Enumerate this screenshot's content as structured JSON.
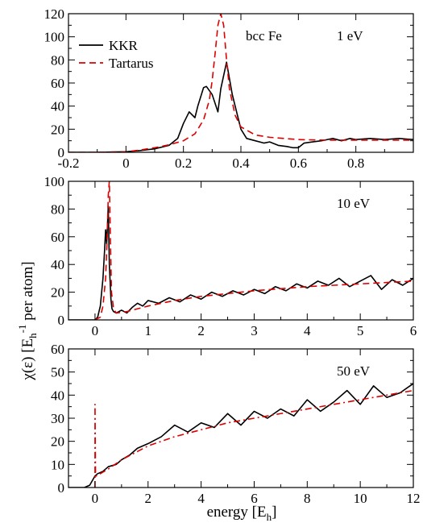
{
  "chart_data": [
    {
      "type": "line",
      "xlim": [
        -0.2,
        1.0
      ],
      "ylim": [
        0,
        120
      ],
      "xticks": [
        -0.2,
        0,
        0.2,
        0.4,
        0.6,
        0.8
      ],
      "xtick_labels": [
        "-0.2",
        "0",
        "0.2",
        "0.4",
        "0.6",
        "0.8"
      ],
      "yticks": [
        0,
        20,
        40,
        60,
        80,
        100,
        120
      ],
      "ytick_labels": [
        "0",
        "20",
        "40",
        "60",
        "80",
        "100",
        "120"
      ],
      "annotations": [
        "bcc Fe",
        "1 eV"
      ],
      "legend": {
        "placement": "top-left",
        "entries": [
          "KKR",
          "Tartarus"
        ]
      },
      "series": [
        {
          "name": "KKR",
          "color": "#000000",
          "dash": "solid",
          "x": [
            -0.2,
            -0.1,
            0.0,
            0.05,
            0.1,
            0.15,
            0.18,
            0.2,
            0.22,
            0.24,
            0.25,
            0.27,
            0.28,
            0.3,
            0.32,
            0.33,
            0.35,
            0.37,
            0.4,
            0.42,
            0.45,
            0.48,
            0.5,
            0.53,
            0.56,
            0.58,
            0.6,
            0.62,
            0.65,
            0.68,
            0.7,
            0.72,
            0.75,
            0.78,
            0.8,
            0.85,
            0.9,
            0.95,
            1.0
          ],
          "y": [
            0,
            0,
            0.5,
            1.5,
            3,
            6,
            12,
            25,
            35,
            30,
            40,
            56,
            57,
            50,
            35,
            55,
            78,
            50,
            20,
            12,
            10,
            8,
            9,
            6,
            5,
            4,
            4,
            8,
            9,
            10,
            11,
            12,
            10,
            12,
            11,
            12,
            11,
            12,
            11
          ]
        },
        {
          "name": "Tartarus",
          "color": "#dd0000",
          "dash": "dashed",
          "x": [
            -0.2,
            -0.1,
            0.0,
            0.05,
            0.1,
            0.15,
            0.2,
            0.24,
            0.27,
            0.29,
            0.3,
            0.31,
            0.32,
            0.33,
            0.34,
            0.35,
            0.36,
            0.38,
            0.4,
            0.45,
            0.5,
            0.55,
            0.6,
            0.7,
            0.8,
            0.9,
            1.0
          ],
          "y": [
            0,
            0,
            0.5,
            2,
            4,
            6.5,
            10,
            16,
            28,
            45,
            62,
            85,
            110,
            120,
            110,
            80,
            55,
            32,
            22,
            15,
            13,
            12,
            11,
            10.5,
            10.5,
            10.5,
            10.5
          ]
        }
      ]
    },
    {
      "type": "line",
      "xlim": [
        -0.5,
        6
      ],
      "ylim": [
        0,
        100
      ],
      "xticks": [
        0,
        1,
        2,
        3,
        4,
        5,
        6
      ],
      "xtick_labels": [
        "0",
        "1",
        "2",
        "3",
        "4",
        "5",
        "6"
      ],
      "yticks": [
        0,
        20,
        40,
        60,
        80,
        100
      ],
      "ytick_labels": [
        "0",
        "20",
        "40",
        "60",
        "80",
        "100"
      ],
      "annotations": [
        "10 eV"
      ],
      "series": [
        {
          "name": "KKR",
          "color": "#000000",
          "dash": "solid",
          "x": [
            -0.5,
            0.0,
            0.05,
            0.1,
            0.15,
            0.18,
            0.2,
            0.22,
            0.25,
            0.27,
            0.3,
            0.32,
            0.35,
            0.4,
            0.5,
            0.6,
            0.7,
            0.8,
            0.9,
            1.0,
            1.2,
            1.4,
            1.6,
            1.8,
            2.0,
            2.2,
            2.4,
            2.6,
            2.8,
            3.0,
            3.2,
            3.4,
            3.6,
            3.8,
            4.0,
            4.2,
            4.4,
            4.6,
            4.8,
            5.0,
            5.2,
            5.4,
            5.6,
            5.8,
            6.0
          ],
          "y": [
            0,
            0,
            2,
            10,
            30,
            50,
            65,
            55,
            82,
            40,
            15,
            8,
            6,
            5,
            7,
            5,
            9,
            12,
            10,
            14,
            12,
            16,
            13,
            18,
            15,
            20,
            17,
            21,
            18,
            22,
            19,
            24,
            21,
            26,
            23,
            28,
            25,
            30,
            24,
            28,
            32,
            22,
            29,
            25,
            30
          ]
        },
        {
          "name": "Tartarus",
          "color": "#dd0000",
          "dash": "dashed",
          "x": [
            0.0,
            0.1,
            0.15,
            0.2,
            0.23,
            0.25,
            0.27,
            0.29,
            0.31,
            0.35,
            0.4,
            0.6,
            0.8,
            1.0,
            1.5,
            2.0,
            2.5,
            3.0,
            3.5,
            4.0,
            4.5,
            5.0,
            5.5,
            6.0
          ],
          "y": [
            0,
            2,
            10,
            30,
            60,
            90,
            100,
            60,
            20,
            8,
            5,
            6,
            8,
            10,
            14,
            17,
            19,
            21,
            22.5,
            24,
            25,
            26,
            27,
            28
          ]
        }
      ]
    },
    {
      "type": "line",
      "xlim": [
        -1,
        12
      ],
      "ylim": [
        0,
        60
      ],
      "xticks": [
        0,
        2,
        4,
        6,
        8,
        10,
        12
      ],
      "xtick_labels": [
        "0",
        "2",
        "4",
        "6",
        "8",
        "10",
        "12"
      ],
      "yticks": [
        0,
        10,
        20,
        30,
        40,
        50,
        60
      ],
      "ytick_labels": [
        "0",
        "10",
        "20",
        "30",
        "40",
        "50",
        "60"
      ],
      "annotations": [
        "50 eV"
      ],
      "series": [
        {
          "name": "KKR",
          "color": "#000000",
          "dash": "solid",
          "x": [
            -1.0,
            -0.4,
            -0.2,
            -0.1,
            0.0,
            0.1,
            0.3,
            0.5,
            0.8,
            1.0,
            1.3,
            1.6,
            2.0,
            2.5,
            3.0,
            3.5,
            4.0,
            4.5,
            5.0,
            5.5,
            6.0,
            6.5,
            7.0,
            7.5,
            8.0,
            8.5,
            9.0,
            9.5,
            10.0,
            10.5,
            11.0,
            11.5,
            12.0
          ],
          "y": [
            0,
            0,
            1,
            3,
            5,
            6,
            7,
            9,
            10,
            12,
            14,
            17,
            19,
            22,
            27,
            24,
            28,
            26,
            32,
            27,
            33,
            30,
            34,
            31,
            38,
            33,
            37,
            42,
            36,
            44,
            39,
            41,
            45
          ]
        },
        {
          "name": "Tartarus",
          "color": "#dd0000",
          "dash": "dashdot",
          "x": [
            0.0,
            0.0,
            0.02,
            0.05,
            0.2,
            0.5,
            1.0,
            1.5,
            2.0,
            3.0,
            4.0,
            5.0,
            6.0,
            7.0,
            8.0,
            9.0,
            10.0,
            11.0,
            12.0
          ],
          "y": [
            0,
            36,
            5,
            5,
            6,
            8,
            12,
            15,
            18,
            22,
            25,
            28,
            30,
            32,
            34,
            36,
            38,
            40,
            42
          ]
        }
      ]
    }
  ],
  "ylabel_main": "χ(ε) [E",
  "ylabel_sub": "h",
  "ylabel_sup": "-1",
  "ylabel_tail": " per atom]",
  "xlabel_main": "energy [E",
  "xlabel_sub": "h",
  "xlabel_tail": "]"
}
